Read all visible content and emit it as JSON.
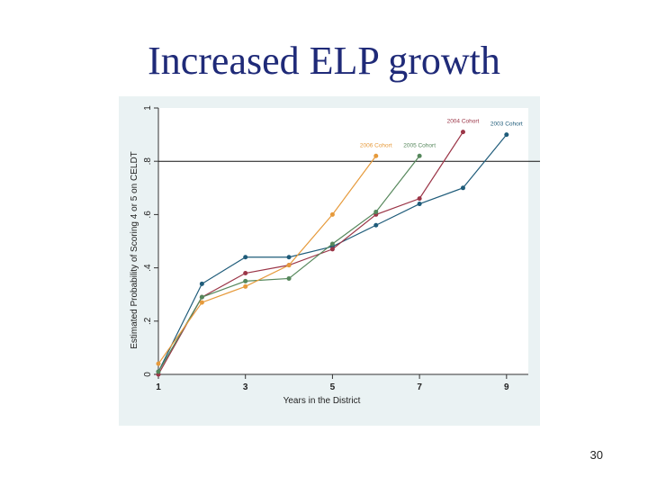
{
  "slide": {
    "title": "Increased ELP growth",
    "page_number": "30"
  },
  "chart_data": {
    "type": "line",
    "title": "",
    "xlabel": "Years in the District",
    "ylabel": "Estimated Probability of Scoring 4 or 5 on CELDT",
    "xlim": [
      1,
      9.5
    ],
    "ylim": [
      0,
      1
    ],
    "xticks": [
      1,
      3,
      5,
      7,
      9
    ],
    "xtick_labels": [
      "1",
      "3",
      "5",
      "7",
      "9"
    ],
    "yticks": [
      0,
      0.2,
      0.4,
      0.6,
      0.8,
      1
    ],
    "ytick_labels": [
      "0",
      ".2",
      ".4",
      ".6",
      ".8",
      "1"
    ],
    "grid": false,
    "reference_line": {
      "y": 0.8
    },
    "series": [
      {
        "name": "2003 Cohort",
        "color": "#1f5c7a",
        "x": [
          1,
          2,
          3,
          4,
          5,
          6,
          7,
          8,
          9
        ],
        "y": [
          0.01,
          0.34,
          0.44,
          0.44,
          0.48,
          0.56,
          0.64,
          0.7,
          0.9
        ]
      },
      {
        "name": "2004 Cohort",
        "color": "#9b3547",
        "x": [
          1,
          2,
          3,
          4,
          5,
          6,
          7,
          8
        ],
        "y": [
          0.0,
          0.29,
          0.38,
          0.41,
          0.47,
          0.6,
          0.66,
          0.91
        ]
      },
      {
        "name": "2005 Cohort",
        "color": "#55875b",
        "x": [
          1,
          2,
          3,
          4,
          5,
          6,
          7
        ],
        "y": [
          0.01,
          0.29,
          0.35,
          0.36,
          0.49,
          0.61,
          0.82
        ]
      },
      {
        "name": "2006 Cohort",
        "color": "#e69a3b",
        "x": [
          1,
          2,
          3,
          4,
          5,
          6
        ],
        "y": [
          0.04,
          0.27,
          0.33,
          0.41,
          0.6,
          0.82
        ]
      }
    ]
  }
}
